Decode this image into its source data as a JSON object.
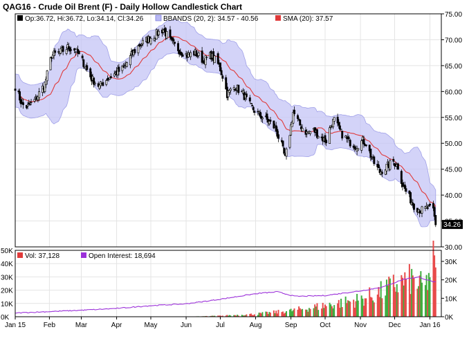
{
  "chart_data": [
    {
      "type": "candlestick",
      "title": "QAG16 - Crude Oil Brent (F) - Daily Hollow Candlestick Chart",
      "legend": [
        {
          "key": "ohlc",
          "text": "Op:36.72, Hi:36.72, Lo:34.14, Cl:34.26",
          "color": "#000000"
        },
        {
          "key": "bbands",
          "text": "BBANDS (20, 2): 34.57 - 40.56",
          "color": "#b9b9f3"
        },
        {
          "key": "sma",
          "text": "SMA (20): 37.57",
          "color": "#e03a3a"
        }
      ],
      "last_price_label": "34.26",
      "y_ticks": [
        "75.00",
        "70.00",
        "65.00",
        "60.00",
        "55.00",
        "50.00",
        "45.00",
        "40.00",
        "35.00",
        "30.00"
      ],
      "ylim": [
        30,
        75
      ],
      "grid": true,
      "legend_position": "top-left",
      "x_tick_labels": [
        "Jan 15",
        "Feb",
        "Mar",
        "Apr",
        "May",
        "Jun",
        "Jul",
        "Aug",
        "Sep",
        "Oct",
        "Nov",
        "Dec",
        "Jan 16"
      ],
      "close_anchors": [
        [
          "2015-01-02",
          61.0
        ],
        [
          "2015-01-08",
          57.5
        ],
        [
          "2015-01-13",
          57.0
        ],
        [
          "2015-01-20",
          58.5
        ],
        [
          "2015-01-28",
          61.5
        ],
        [
          "2015-02-03",
          67.0
        ],
        [
          "2015-02-10",
          67.5
        ],
        [
          "2015-02-17",
          68.5
        ],
        [
          "2015-02-24",
          68.0
        ],
        [
          "2015-03-03",
          65.5
        ],
        [
          "2015-03-10",
          62.5
        ],
        [
          "2015-03-17",
          61.0
        ],
        [
          "2015-03-24",
          62.5
        ],
        [
          "2015-03-31",
          63.5
        ],
        [
          "2015-04-07",
          64.5
        ],
        [
          "2015-04-14",
          67.0
        ],
        [
          "2015-04-21",
          69.0
        ],
        [
          "2015-04-28",
          70.0
        ],
        [
          "2015-05-05",
          71.0
        ],
        [
          "2015-05-12",
          72.0
        ],
        [
          "2015-05-19",
          69.5
        ],
        [
          "2015-05-26",
          68.0
        ],
        [
          "2015-06-02",
          67.0
        ],
        [
          "2015-06-09",
          67.5
        ],
        [
          "2015-06-16",
          66.0
        ],
        [
          "2015-06-23",
          67.0
        ],
        [
          "2015-06-30",
          65.0
        ],
        [
          "2015-07-03",
          63.0
        ],
        [
          "2015-07-07",
          59.5
        ],
        [
          "2015-07-14",
          61.0
        ],
        [
          "2015-07-21",
          59.5
        ],
        [
          "2015-07-28",
          57.0
        ],
        [
          "2015-08-04",
          55.5
        ],
        [
          "2015-08-11",
          54.5
        ],
        [
          "2015-08-18",
          53.0
        ],
        [
          "2015-08-24",
          49.5
        ],
        [
          "2015-08-27",
          47.0
        ],
        [
          "2015-08-31",
          52.0
        ],
        [
          "2015-09-03",
          56.0
        ],
        [
          "2015-09-09",
          53.5
        ],
        [
          "2015-09-15",
          52.0
        ],
        [
          "2015-09-21",
          52.5
        ],
        [
          "2015-09-28",
          51.0
        ],
        [
          "2015-10-02",
          50.5
        ],
        [
          "2015-10-06",
          53.5
        ],
        [
          "2015-10-09",
          54.5
        ],
        [
          "2015-10-15",
          52.0
        ],
        [
          "2015-10-21",
          50.5
        ],
        [
          "2015-10-28",
          49.5
        ],
        [
          "2015-11-03",
          50.5
        ],
        [
          "2015-11-06",
          50.0
        ],
        [
          "2015-11-12",
          46.5
        ],
        [
          "2015-11-18",
          44.5
        ],
        [
          "2015-11-24",
          45.5
        ],
        [
          "2015-11-30",
          46.5
        ],
        [
          "2015-12-04",
          45.5
        ],
        [
          "2015-12-08",
          42.0
        ],
        [
          "2015-12-14",
          39.5
        ],
        [
          "2015-12-18",
          38.0
        ],
        [
          "2015-12-24",
          37.0
        ],
        [
          "2015-12-30",
          37.5
        ],
        [
          "2016-01-04",
          37.0
        ],
        [
          "2016-01-06",
          34.26
        ]
      ]
    },
    {
      "type": "bar",
      "legend": [
        {
          "key": "vol",
          "text": "Vol: 37,128",
          "color": "#e03a3a"
        },
        {
          "key": "oi",
          "text": "Open Interest: 18,694",
          "color": "#9b30d9"
        }
      ],
      "left_y_ticks": [
        "50K",
        "40K",
        "30K",
        "20K",
        "10K",
        "0K"
      ],
      "right_y_ticks": [
        "30K",
        "20K",
        "10K",
        "0K"
      ],
      "volume_ylim": [
        0,
        50000
      ],
      "open_interest_ylim": [
        0,
        36000
      ],
      "volume_anchors": [
        [
          "2015-01-02",
          0
        ],
        [
          "2015-03-01",
          0
        ],
        [
          "2015-06-01",
          0
        ],
        [
          "2015-07-01",
          700
        ],
        [
          "2015-08-01",
          2000
        ],
        [
          "2015-09-01",
          4500
        ],
        [
          "2015-10-01",
          8500
        ],
        [
          "2015-11-01",
          13000
        ],
        [
          "2015-11-20",
          19000
        ],
        [
          "2015-12-01",
          24000
        ],
        [
          "2015-12-15",
          28000
        ],
        [
          "2015-12-28",
          22000
        ],
        [
          "2016-01-04",
          42000
        ],
        [
          "2016-01-06",
          37128
        ]
      ],
      "open_interest_anchors": [
        [
          "2015-01-02",
          2000
        ],
        [
          "2015-02-01",
          2800
        ],
        [
          "2015-03-01",
          3500
        ],
        [
          "2015-04-01",
          4500
        ],
        [
          "2015-05-01",
          6000
        ],
        [
          "2015-06-01",
          7000
        ],
        [
          "2015-07-01",
          9500
        ],
        [
          "2015-08-01",
          12500
        ],
        [
          "2015-08-20",
          13500
        ],
        [
          "2015-09-05",
          11000
        ],
        [
          "2015-10-01",
          11500
        ],
        [
          "2015-11-01",
          14000
        ],
        [
          "2015-11-20",
          16000
        ],
        [
          "2015-12-01",
          18500
        ],
        [
          "2015-12-10",
          20500
        ],
        [
          "2015-12-22",
          21500
        ],
        [
          "2016-01-04",
          19000
        ],
        [
          "2016-01-06",
          18694
        ]
      ]
    }
  ]
}
